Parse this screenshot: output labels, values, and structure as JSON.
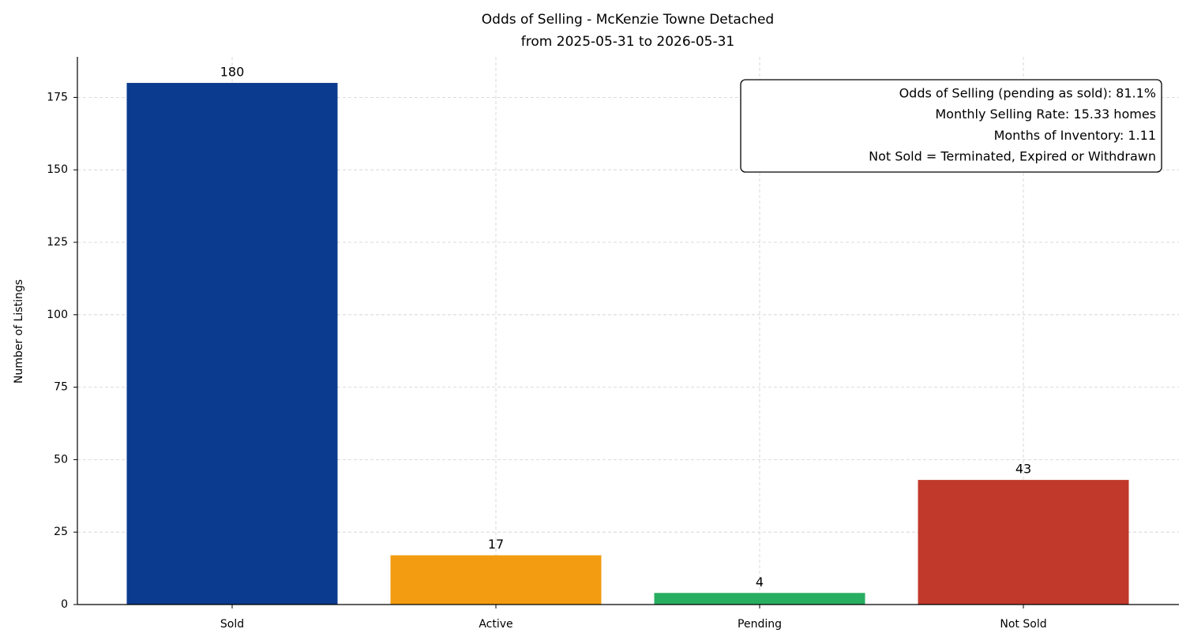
{
  "chart_data": {
    "type": "bar",
    "title": "Odds of Selling - McKenzie Towne Detached",
    "subtitle": "from 2025-05-31 to 2026-05-31",
    "y_label": "Number of Listings",
    "categories": [
      "Sold",
      "Active",
      "Pending",
      "Not Sold"
    ],
    "values": [
      180,
      17,
      4,
      43
    ],
    "colors": [
      "#0b3b8f",
      "#f39c12",
      "#27ae60",
      "#c0392b"
    ],
    "ylim": [
      0,
      189
    ],
    "yticks": [
      0,
      25,
      50,
      75,
      100,
      125,
      150,
      175
    ],
    "grid": true,
    "annotation": [
      "Odds of Selling (pending as sold): 81.1%",
      "Monthly Selling Rate: 15.33 homes",
      "Months of Inventory: 1.11",
      "Not Sold = Terminated, Expired or Withdrawn"
    ]
  }
}
